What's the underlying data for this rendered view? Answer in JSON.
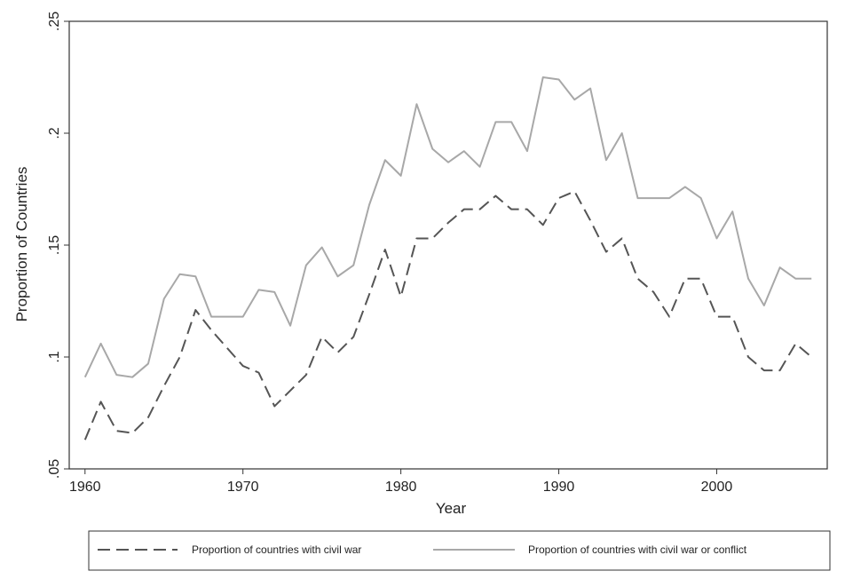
{
  "chart_data": {
    "type": "line",
    "title": "",
    "xlabel": "Year",
    "ylabel": "Proportion of Countries",
    "xlim": [
      1959,
      2007
    ],
    "ylim": [
      0.05,
      0.25
    ],
    "xticks": [
      1960,
      1970,
      1980,
      1990,
      2000
    ],
    "xtick_labels": [
      "1960",
      "1970",
      "1980",
      "1990",
      "2000"
    ],
    "yticks": [
      0.05,
      0.1,
      0.15,
      0.2,
      0.25
    ],
    "ytick_labels": [
      ".05",
      ".1",
      ".15",
      ".2",
      ".25"
    ],
    "grid": false,
    "legend_position": "bottom",
    "x": [
      1960,
      1961,
      1962,
      1963,
      1964,
      1965,
      1966,
      1967,
      1968,
      1969,
      1970,
      1971,
      1972,
      1973,
      1974,
      1975,
      1976,
      1977,
      1978,
      1979,
      1980,
      1981,
      1982,
      1983,
      1984,
      1985,
      1986,
      1987,
      1988,
      1989,
      1990,
      1991,
      1992,
      1993,
      1994,
      1995,
      1996,
      1997,
      1998,
      1999,
      2000,
      2001,
      2002,
      2003,
      2004,
      2005,
      2006
    ],
    "series": [
      {
        "name": "Proportion of countries with civil war",
        "color": "#555555",
        "dash": "dashed",
        "values": [
          0.063,
          0.08,
          0.067,
          0.066,
          0.073,
          0.087,
          0.1,
          0.121,
          0.112,
          0.104,
          0.096,
          0.093,
          0.078,
          0.085,
          0.092,
          0.109,
          0.102,
          0.109,
          0.128,
          0.148,
          0.127,
          0.153,
          0.153,
          0.16,
          0.166,
          0.166,
          0.172,
          0.166,
          0.166,
          0.159,
          0.171,
          0.174,
          0.161,
          0.147,
          0.153,
          0.135,
          0.129,
          0.118,
          0.135,
          0.135,
          0.118,
          0.118,
          0.1,
          0.094,
          0.094,
          0.106,
          0.1
        ]
      },
      {
        "name": "Proportion of countries with civil war or conflict",
        "color": "#a8a8a8",
        "dash": "solid",
        "values": [
          0.091,
          0.106,
          0.092,
          0.091,
          0.097,
          0.126,
          0.137,
          0.136,
          0.118,
          0.118,
          0.118,
          0.13,
          0.129,
          0.114,
          0.141,
          0.149,
          0.136,
          0.141,
          0.168,
          0.188,
          0.181,
          0.213,
          0.193,
          0.187,
          0.192,
          0.185,
          0.205,
          0.205,
          0.192,
          0.225,
          0.224,
          0.215,
          0.22,
          0.188,
          0.2,
          0.171,
          0.171,
          0.171,
          0.176,
          0.171,
          0.153,
          0.165,
          0.135,
          0.123,
          0.14,
          0.135,
          0.135
        ]
      }
    ]
  }
}
